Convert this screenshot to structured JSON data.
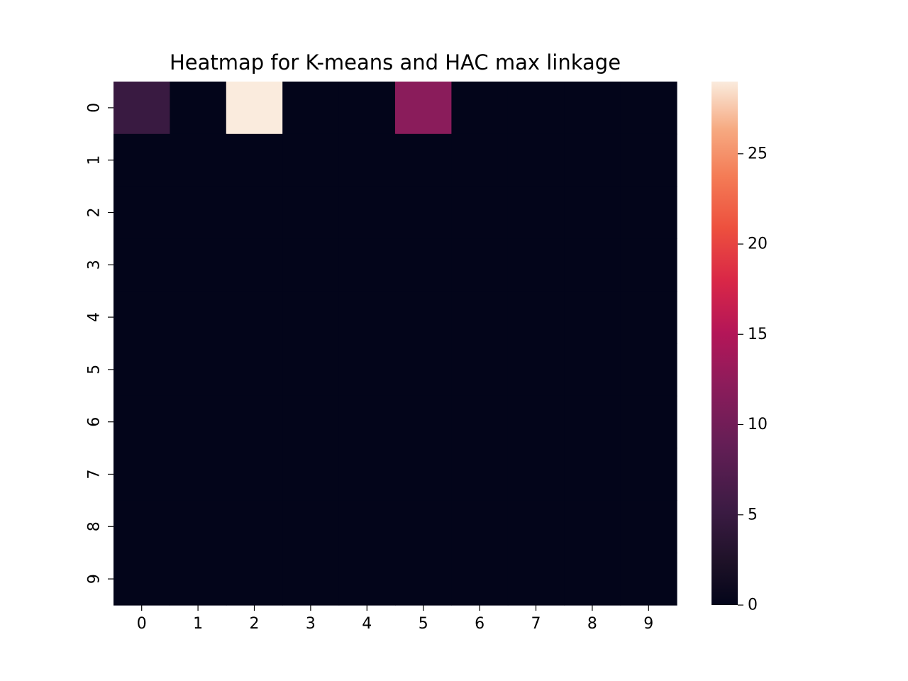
{
  "chart_data": {
    "type": "heatmap",
    "title": "Heatmap for K-means and HAC max linkage",
    "x_categories": [
      "0",
      "1",
      "2",
      "3",
      "4",
      "5",
      "6",
      "7",
      "8",
      "9"
    ],
    "y_categories": [
      "0",
      "1",
      "2",
      "3",
      "4",
      "5",
      "6",
      "7",
      "8",
      "9"
    ],
    "values": [
      [
        5,
        0,
        29,
        0,
        0,
        12,
        0,
        0,
        0,
        0
      ],
      [
        0,
        0,
        0,
        0,
        0,
        0,
        0,
        0,
        0,
        0
      ],
      [
        0,
        0,
        0,
        0,
        0,
        0,
        0,
        0,
        0,
        0
      ],
      [
        0,
        0,
        0,
        0,
        0,
        0,
        0,
        0,
        0,
        0
      ],
      [
        0,
        0,
        0,
        0,
        0,
        0,
        0,
        0,
        0,
        0
      ],
      [
        0,
        0,
        0,
        0,
        0,
        0,
        0,
        0,
        0,
        0
      ],
      [
        0,
        0,
        0,
        0,
        0,
        0,
        0,
        0,
        0,
        0
      ],
      [
        0,
        0,
        0,
        0,
        0,
        0,
        0,
        0,
        0,
        0
      ],
      [
        0,
        0,
        0,
        0,
        0,
        0,
        0,
        0,
        0,
        0
      ],
      [
        0,
        0,
        0,
        0,
        0,
        0,
        0,
        0,
        0,
        0
      ]
    ],
    "vmin": 0,
    "vmax": 29,
    "colormap": "rocket",
    "colorbar": {
      "ticks": [
        0,
        5,
        10,
        15,
        20,
        25
      ],
      "tick_labels": [
        "0",
        "5",
        "10",
        "15",
        "20",
        "25"
      ],
      "placement": "right"
    },
    "grid": false
  }
}
